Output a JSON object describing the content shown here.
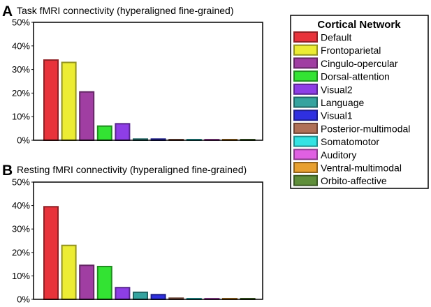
{
  "chart_data": [
    {
      "type": "bar",
      "panel": "A",
      "title": "Task fMRI connectivity (hyperaligned fine-grained)",
      "categories": [
        "Default",
        "Frontoparietal",
        "Cingulo-opercular",
        "Dorsal-attention",
        "Visual2",
        "Language",
        "Visual1",
        "Posterior-multimodal",
        "Somatomotor",
        "Auditory",
        "Ventral-multimodal",
        "Orbito-affective"
      ],
      "values": [
        34,
        33,
        20.5,
        6,
        7,
        0.5,
        0.5,
        0.3,
        0.3,
        0.3,
        0.3,
        0.3
      ],
      "yticks": [
        "0%",
        "10%",
        "20%",
        "30%",
        "40%",
        "50%"
      ],
      "ylim": [
        0,
        50
      ]
    },
    {
      "type": "bar",
      "panel": "B",
      "title": "Resting fMRI connectivity (hyperaligned fine-grained)",
      "categories": [
        "Default",
        "Frontoparietal",
        "Cingulo-opercular",
        "Dorsal-attention",
        "Visual2",
        "Language",
        "Visual1",
        "Posterior-multimodal",
        "Somatomotor",
        "Auditory",
        "Ventral-multimodal",
        "Orbito-affective"
      ],
      "values": [
        39.5,
        23,
        14.5,
        14,
        5,
        3,
        2,
        0.5,
        0.3,
        0.3,
        0.3,
        0.3
      ],
      "yticks": [
        "0%",
        "10%",
        "20%",
        "30%",
        "40%",
        "50%"
      ],
      "ylim": [
        0,
        50
      ]
    }
  ],
  "legend": {
    "title": "Cortical Network",
    "items": [
      {
        "label": "Default",
        "color": "#e8333b"
      },
      {
        "label": "Frontoparietal",
        "color": "#ecec34"
      },
      {
        "label": "Cingulo-opercular",
        "color": "#a03ea2"
      },
      {
        "label": "Dorsal-attention",
        "color": "#33e333"
      },
      {
        "label": "Visual2",
        "color": "#8e3ee6"
      },
      {
        "label": "Language",
        "color": "#35a39f"
      },
      {
        "label": "Visual1",
        "color": "#2f30e0"
      },
      {
        "label": "Posterior-multimodal",
        "color": "#b07057"
      },
      {
        "label": "Somatomotor",
        "color": "#35e3e3"
      },
      {
        "label": "Auditory",
        "color": "#e060e2"
      },
      {
        "label": "Ventral-multimodal",
        "color": "#e8a030"
      },
      {
        "label": "Orbito-affective",
        "color": "#5f8e3a"
      }
    ]
  }
}
